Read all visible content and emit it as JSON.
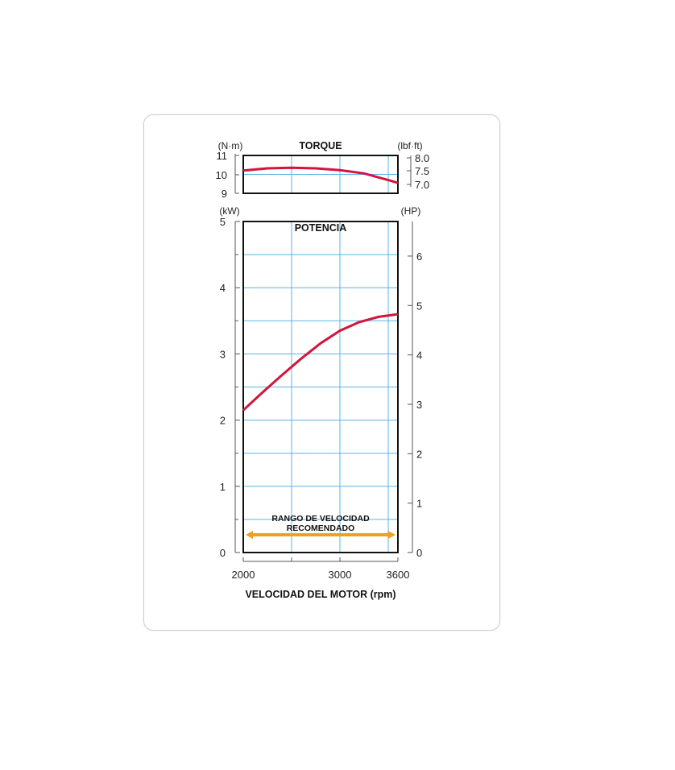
{
  "chart_data": [
    {
      "type": "line",
      "title": "TORQUE",
      "left_unit": "(N·m)",
      "right_unit": "(lbf·ft)",
      "x": [
        2000,
        2250,
        2500,
        2750,
        3000,
        3250,
        3500,
        3600
      ],
      "xlim": [
        2000,
        3600
      ],
      "ylim": [
        9,
        11
      ],
      "left_ticks": [
        "11",
        "10",
        "9"
      ],
      "right_ticks": [
        "8.0",
        "7.5",
        "7.0"
      ],
      "series": [
        {
          "values": [
            10.2,
            10.32,
            10.35,
            10.32,
            10.22,
            10.05,
            9.7,
            9.55
          ],
          "color": "#d4143c"
        }
      ],
      "grid": true
    },
    {
      "type": "line",
      "title": "POTENCIA",
      "left_unit": "(kW)",
      "right_unit": "(HP)",
      "x": [
        2000,
        2200,
        2400,
        2600,
        2800,
        3000,
        3200,
        3400,
        3600
      ],
      "xlim": [
        2000,
        3600
      ],
      "ylim": [
        0,
        5
      ],
      "right_ylim": [
        0,
        6.7
      ],
      "left_ticks": [
        "5",
        "4",
        "3",
        "2",
        "1",
        "0"
      ],
      "right_ticks": [
        "6",
        "5",
        "4",
        "3",
        "2",
        "1",
        "0"
      ],
      "x_ticks": [
        "2000",
        "3000",
        "3600"
      ],
      "xlabel": "VELOCIDAD DEL MOTOR (rpm)",
      "series": [
        {
          "values": [
            2.15,
            2.42,
            2.68,
            2.93,
            3.16,
            3.35,
            3.48,
            3.56,
            3.6
          ],
          "color": "#d4143c"
        }
      ],
      "range_annotation": {
        "label_line1": "RANGO DE VELOCIDAD",
        "label_line2": "RECOMENDADO",
        "from": 2000,
        "to": 3600,
        "color": "#f0a01e"
      },
      "grid": true
    }
  ]
}
